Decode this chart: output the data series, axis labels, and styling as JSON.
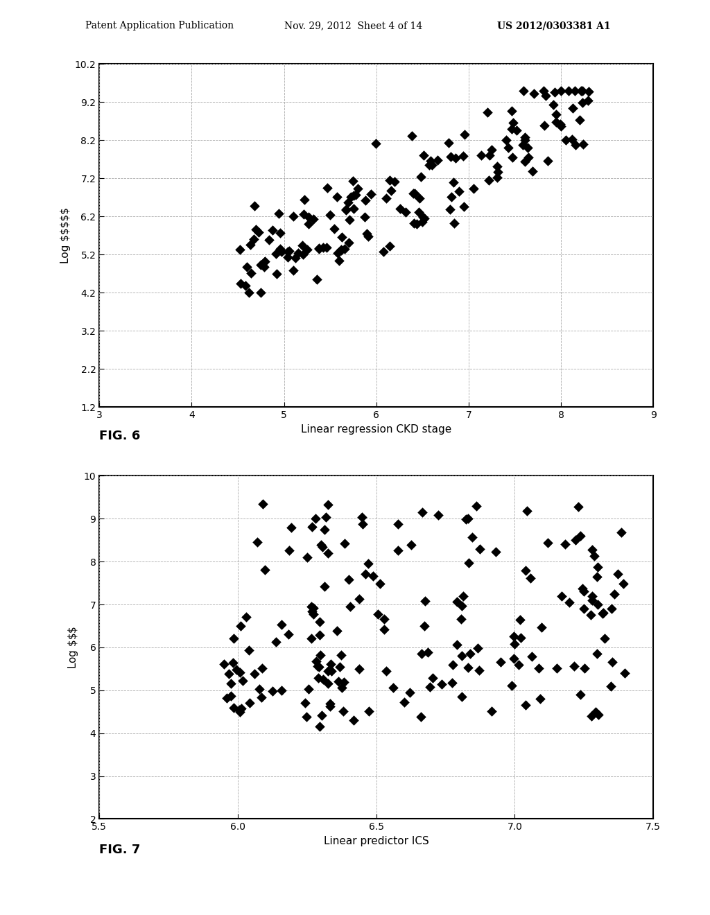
{
  "fig6": {
    "xlabel": "Linear regression CKD stage",
    "ylabel": "Log $$",
    "fig_label": "FIG. 6",
    "xlim": [
      3,
      9
    ],
    "ylim": [
      1.2,
      10.2
    ],
    "xticks": [
      3,
      4,
      5,
      6,
      7,
      8,
      9
    ],
    "yticks": [
      1.2,
      2.2,
      3.2,
      4.2,
      5.2,
      6.2,
      7.2,
      8.2,
      9.2,
      10.2
    ]
  },
  "fig7": {
    "xlabel": "Linear predictor ICS",
    "ylabel": "Log $$$",
    "fig_label": "FIG. 7",
    "xlim": [
      5.5,
      7.5
    ],
    "ylim": [
      2,
      10
    ],
    "xticks": [
      5.5,
      6.0,
      6.5,
      7.0,
      7.5
    ],
    "yticks": [
      2,
      3,
      4,
      5,
      6,
      7,
      8,
      9,
      10
    ]
  },
  "header_left": "Patent Application Publication",
  "header_center": "Nov. 29, 2012  Sheet 4 of 14",
  "header_right": "US 2012/0303381 A1",
  "bg_color": "#ffffff",
  "marker_color": "#000000",
  "grid_color": "#aaaaaa",
  "marker_size": 55,
  "marker_style": "D"
}
